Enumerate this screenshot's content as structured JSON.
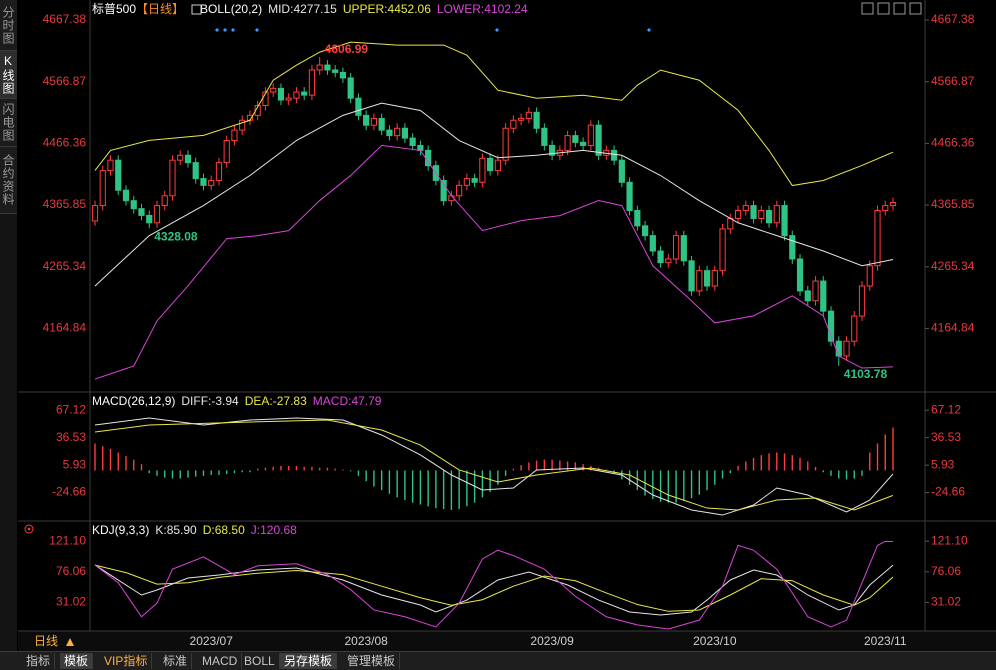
{
  "sidebar": [
    "分时图",
    "K线图",
    "闪电图",
    "合约资料"
  ],
  "toolbar": [
    "指标",
    "模板",
    "VIP指标",
    "标准",
    "MACD",
    "BOLL",
    "另存模板",
    "管理模板"
  ],
  "period": "日线",
  "chart_data": [
    {
      "type": "candlestick",
      "title": "标普500",
      "period_label": "【日线】",
      "indicator": "BOLL(20,2)",
      "up_color": "#ff3d3d",
      "down_color": "#2fc485",
      "tick_color": "#e8383d",
      "ylim": [
        4064.5,
        4683.7
      ],
      "yticks": [
        4667.38,
        4566.87,
        4466.36,
        4365.85,
        4265.34,
        4164.84
      ],
      "categories": [
        null,
        null,
        null,
        null,
        null,
        null,
        null,
        null,
        null,
        null,
        null,
        null,
        null,
        null,
        null,
        "2023/07",
        null,
        null,
        null,
        null,
        null,
        null,
        null,
        null,
        null,
        null,
        null,
        null,
        null,
        null,
        null,
        null,
        null,
        null,
        null,
        "2023/08",
        null,
        null,
        null,
        null,
        null,
        null,
        null,
        null,
        null,
        null,
        null,
        null,
        null,
        null,
        null,
        null,
        null,
        null,
        null,
        null,
        null,
        null,
        null,
        "2023/09",
        null,
        null,
        null,
        null,
        null,
        null,
        null,
        null,
        null,
        null,
        null,
        null,
        null,
        null,
        null,
        null,
        null,
        null,
        null,
        null,
        "2023/10",
        null,
        null,
        null,
        null,
        null,
        null,
        null,
        null,
        null,
        null,
        null,
        null,
        null,
        null,
        null,
        null,
        null,
        null,
        null,
        null,
        null,
        "2023/11",
        null
      ],
      "open": [
        4340,
        4365,
        4422,
        4439,
        4390,
        4373,
        4360,
        4349,
        4337,
        4365,
        4381,
        4439,
        4447,
        4435,
        4409,
        4398,
        4406,
        4435,
        4471,
        4488,
        4504,
        4512,
        4528,
        4550,
        4556,
        4537,
        4540,
        4550,
        4545,
        4586,
        4594,
        4586,
        4582,
        4573,
        4540,
        4512,
        4496,
        4507,
        4488,
        4479,
        4491,
        4475,
        4463,
        4455,
        4430,
        4406,
        4373,
        4381,
        4398,
        4409,
        4403,
        4442,
        4422,
        4439,
        4491,
        4504,
        4507,
        4517,
        4491,
        4463,
        4447,
        4455,
        4479,
        4468,
        4463,
        4496,
        4447,
        4455,
        4439,
        4403,
        4357,
        4332,
        4316,
        4291,
        4272,
        4278,
        4316,
        4275,
        4226,
        4259,
        4234,
        4259,
        4327,
        4344,
        4357,
        4365,
        4344,
        4357,
        4337,
        4365,
        4316,
        4278,
        4226,
        4210,
        4242,
        4193,
        4144,
        4120,
        4144,
        4185,
        4234,
        4267,
        4357,
        4365
      ],
      "high": [
        4373,
        4430,
        4447,
        4447,
        4398,
        4381,
        4368,
        4357,
        4373,
        4389,
        4447,
        4455,
        4455,
        4443,
        4417,
        4414,
        4443,
        4479,
        4496,
        4512,
        4520,
        4536,
        4558,
        4564,
        4564,
        4548,
        4558,
        4558,
        4594,
        4606.99,
        4602,
        4594,
        4590,
        4581,
        4548,
        4520,
        4515,
        4515,
        4496,
        4499,
        4499,
        4483,
        4471,
        4463,
        4438,
        4414,
        4389,
        4406,
        4417,
        4417,
        4450,
        4450,
        4447,
        4499,
        4512,
        4515,
        4525,
        4525,
        4499,
        4471,
        4463,
        4487,
        4487,
        4476,
        4504,
        4504,
        4463,
        4463,
        4447,
        4411,
        4365,
        4340,
        4324,
        4299,
        4286,
        4324,
        4324,
        4283,
        4267,
        4267,
        4267,
        4335,
        4352,
        4365,
        4373,
        4373,
        4365,
        4365,
        4373,
        4373,
        4324,
        4286,
        4234,
        4250,
        4250,
        4201,
        4152,
        4152,
        4193,
        4242,
        4275,
        4365,
        4373,
        4378
      ],
      "low": [
        4332,
        4357,
        4414,
        4382,
        4365,
        4352,
        4341,
        4328.08,
        4329,
        4357,
        4373,
        4431,
        4427,
        4401,
        4390,
        4390,
        4398,
        4427,
        4463,
        4480,
        4496,
        4504,
        4520,
        4542,
        4529,
        4529,
        4532,
        4537,
        4537,
        4578,
        4578,
        4574,
        4565,
        4532,
        4504,
        4488,
        4488,
        4480,
        4471,
        4471,
        4467,
        4455,
        4447,
        4422,
        4398,
        4365,
        4365,
        4373,
        4390,
        4395,
        4395,
        4414,
        4414,
        4431,
        4483,
        4496,
        4499,
        4483,
        4455,
        4439,
        4439,
        4447,
        4460,
        4455,
        4455,
        4439,
        4439,
        4431,
        4395,
        4349,
        4324,
        4308,
        4283,
        4264,
        4264,
        4270,
        4267,
        4218,
        4218,
        4226,
        4226,
        4251,
        4319,
        4336,
        4349,
        4336,
        4336,
        4329,
        4329,
        4308,
        4270,
        4218,
        4202,
        4202,
        4185,
        4136,
        4103.78,
        4112,
        4136,
        4177,
        4226,
        4259,
        4349,
        4357
      ],
      "close": [
        4365,
        4422,
        4439,
        4390,
        4373,
        4360,
        4349,
        4337,
        4365,
        4381,
        4439,
        4447,
        4435,
        4409,
        4398,
        4406,
        4435,
        4471,
        4488,
        4504,
        4512,
        4528,
        4550,
        4556,
        4537,
        4540,
        4550,
        4545,
        4586,
        4594,
        4586,
        4582,
        4573,
        4540,
        4512,
        4496,
        4507,
        4488,
        4479,
        4491,
        4475,
        4463,
        4455,
        4430,
        4406,
        4373,
        4381,
        4398,
        4409,
        4403,
        4442,
        4422,
        4439,
        4491,
        4504,
        4507,
        4517,
        4491,
        4463,
        4447,
        4455,
        4479,
        4468,
        4463,
        4496,
        4447,
        4455,
        4439,
        4403,
        4357,
        4332,
        4316,
        4291,
        4272,
        4278,
        4316,
        4275,
        4226,
        4259,
        4234,
        4259,
        4327,
        4344,
        4357,
        4365,
        4344,
        4357,
        4337,
        4365,
        4316,
        4278,
        4226,
        4210,
        4242,
        4193,
        4144,
        4120,
        4144,
        4185,
        4234,
        4267,
        4357,
        4365,
        4370
      ],
      "series": [
        {
          "name": "MID:",
          "value": 4277.15,
          "color": "#e6e6e6",
          "x": [
            0,
            7,
            14,
            20,
            26,
            32,
            37,
            42,
            47,
            52,
            57,
            63,
            68,
            73,
            78,
            83,
            88,
            94,
            99,
            103
          ],
          "values": [
            4234,
            4316,
            4365,
            4414,
            4471,
            4512,
            4532,
            4520,
            4471,
            4443,
            4447,
            4455,
            4447,
            4414,
            4373,
            4337,
            4316,
            4291,
            4267,
            4277.15
          ]
        },
        {
          "name": "UPPER:",
          "value": 4452.06,
          "color": "#e8e84a",
          "x": [
            0,
            2,
            7,
            14,
            20,
            23,
            26,
            29,
            33,
            39,
            45,
            48,
            52,
            57,
            63,
            68,
            70,
            73,
            78,
            83,
            87,
            90,
            94,
            99,
            103
          ],
          "values": [
            4422.2,
            4454.9,
            4471.3,
            4479.4,
            4504,
            4569.3,
            4593.8,
            4615.1,
            4631.4,
            4626.5,
            4626.5,
            4610.2,
            4553,
            4539.9,
            4544.8,
            4536.6,
            4561.2,
            4585.7,
            4569.3,
            4520.3,
            4454.9,
            4397.7,
            4405.9,
            4430.4,
            4452.06
          ]
        },
        {
          "name": "LOWER:",
          "value": 4102.24,
          "color": "#d845d8",
          "x": [
            0,
            5,
            8,
            12,
            17,
            21,
            25,
            29,
            33,
            37,
            42,
            46,
            50,
            55,
            60,
            65,
            68,
            72,
            77,
            80,
            85,
            90,
            94,
            96,
            99,
            103
          ],
          "values": [
            4082.3,
            4103.6,
            4177.1,
            4234.3,
            4311,
            4316,
            4324.2,
            4373.2,
            4414.1,
            4463.1,
            4454.9,
            4381.4,
            4324.2,
            4340.5,
            4348.7,
            4373.2,
            4365,
            4266.9,
            4209.8,
            4173.8,
            4185.3,
            4217.9,
            4185.3,
            4119.9,
            4100.3,
            4102.24
          ]
        }
      ],
      "annotations": [
        {
          "x": 29,
          "value": 4606.99,
          "color": "#ff3d3d"
        },
        {
          "x": 7,
          "value": 4328.08,
          "color": "#2fc485"
        },
        {
          "x": 96,
          "value": 4103.78,
          "color": "#2fc485"
        }
      ]
    },
    {
      "type": "macd",
      "title": "MACD(26,12,9)",
      "tick_color": "#e8383d",
      "ylim": [
        -53,
        80.7
      ],
      "yticks": [
        67.12,
        36.53,
        5.93,
        -24.66
      ],
      "histogram": {
        "name": "MACD:",
        "value": 47.79,
        "color": "#d845d8",
        "up_color": "#ff3d3d",
        "down_color": "#2fc485",
        "values": [
          30,
          27,
          24,
          20,
          16,
          12,
          7,
          -3,
          -6,
          -8,
          -9,
          -9,
          -8,
          -7,
          -6,
          -5,
          -5,
          -4,
          -3,
          -2,
          -2,
          2,
          3,
          4,
          5,
          5,
          5,
          4,
          4,
          3,
          3,
          2,
          1,
          -1,
          -6,
          -12,
          -18,
          -22,
          -26,
          -30,
          -33,
          -36,
          -38,
          -40,
          -42,
          -43,
          -44,
          -43,
          -40,
          -36,
          -30,
          -24,
          -16,
          -6,
          2,
          6,
          9,
          11,
          12,
          12,
          11,
          10,
          9,
          7,
          5,
          3,
          1,
          -4,
          -10,
          -16,
          -22,
          -28,
          -32,
          -35,
          -36,
          -36,
          -34,
          -31,
          -27,
          -22,
          -16,
          -9,
          -3,
          5,
          10,
          14,
          17,
          19,
          20,
          19,
          17,
          14,
          10,
          4,
          -2,
          -6,
          -9,
          -10,
          -9,
          -6,
          20,
          30,
          40,
          47.79
        ]
      },
      "series": [
        {
          "name": "DIFF:",
          "value": -3.94,
          "color": "#e6e6e6",
          "x": [
            0,
            7,
            14,
            20,
            26,
            32,
            37,
            42,
            46,
            50,
            54,
            57,
            63,
            68,
            72,
            77,
            81,
            85,
            88,
            92,
            97,
            100,
            103
          ],
          "values": [
            50.6,
            58.4,
            50.6,
            56.2,
            58.4,
            56.2,
            39.5,
            17.2,
            -5.1,
            -21.8,
            -19.6,
            0.5,
            2.7,
            -5.1,
            -27.4,
            -44.1,
            -49.7,
            -38.5,
            -19.6,
            -27.4,
            -46.3,
            -33,
            -3.94
          ]
        },
        {
          "name": "DEA:",
          "value": -27.83,
          "color": "#e8e84a",
          "x": [
            0,
            7,
            20,
            30,
            37,
            42,
            47,
            52,
            57,
            64,
            69,
            74,
            79,
            83,
            88,
            93,
            98,
            103
          ],
          "values": [
            42.8,
            50.6,
            54,
            56.2,
            45,
            28.3,
            0.5,
            -12.9,
            -5.1,
            2.7,
            -5.1,
            -27.4,
            -41.9,
            -44.1,
            -33,
            -30.7,
            -44.1,
            -27.83
          ]
        }
      ]
    },
    {
      "type": "kdj",
      "title": "KDJ(9,3,3)",
      "tick_color": "#e8383d",
      "ylim": [
        -9.5,
        140.6
      ],
      "yticks": [
        {
          "value": 121.1,
          "label": "121.10"
        },
        76.06,
        31.02
      ],
      "series": [
        {
          "name": "K:",
          "value": {
            "value": 85.9,
            "label": "85.90"
          },
          "color": "#e6e6e6",
          "x": [
            0,
            2,
            6,
            8,
            12,
            16,
            21,
            26,
            32,
            37,
            42,
            44,
            48,
            52,
            56,
            61,
            65,
            69,
            73,
            77,
            79,
            82,
            85,
            88,
            92,
            96,
            98,
            100,
            103
          ],
          "values": [
            86.2,
            71.4,
            42,
            49.4,
            67,
            71.4,
            78.8,
            81.7,
            64.1,
            42,
            27.3,
            17,
            34.6,
            64.1,
            75.9,
            56.7,
            34.6,
            17,
            12.6,
            17,
            34.6,
            64.1,
            78.8,
            71.4,
            42,
            19.9,
            27.3,
            56.7,
            85.9
          ]
        },
        {
          "name": "D:",
          "value": {
            "value": 68.5,
            "label": "68.50"
          },
          "color": "#e8e84a",
          "x": [
            0,
            4,
            8,
            12,
            16,
            21,
            26,
            32,
            37,
            42,
            46,
            50,
            54,
            58,
            62,
            66,
            70,
            74,
            78,
            82,
            86,
            90,
            94,
            98,
            100,
            103
          ],
          "values": [
            86,
            75,
            58,
            60,
            68,
            74,
            78,
            72,
            55,
            38,
            27,
            35,
            55,
            70,
            63,
            45,
            28,
            18,
            20,
            42,
            66,
            63,
            42,
            27,
            38,
            68.5
          ]
        },
        {
          "name": "J:",
          "value": 120.68,
          "color": "#d845d8",
          "x": [
            0,
            3,
            6,
            8,
            10,
            14,
            18,
            21,
            26,
            30,
            33,
            36,
            40,
            44,
            47,
            50,
            52,
            54,
            58,
            62,
            66,
            70,
            74,
            78,
            81,
            83,
            85,
            88,
            92,
            95,
            97,
            99,
            101,
            102,
            103
          ],
          "values": [
            86,
            60,
            10,
            30,
            80,
            98,
            72,
            85,
            88,
            72,
            50,
            20,
            10,
            -5,
            30,
            95,
            108,
            100,
            80,
            40,
            10,
            -2,
            -8,
            5,
            55,
            115,
            108,
            80,
            10,
            -5,
            5,
            60,
            115,
            121,
            120.68
          ]
        }
      ]
    }
  ]
}
